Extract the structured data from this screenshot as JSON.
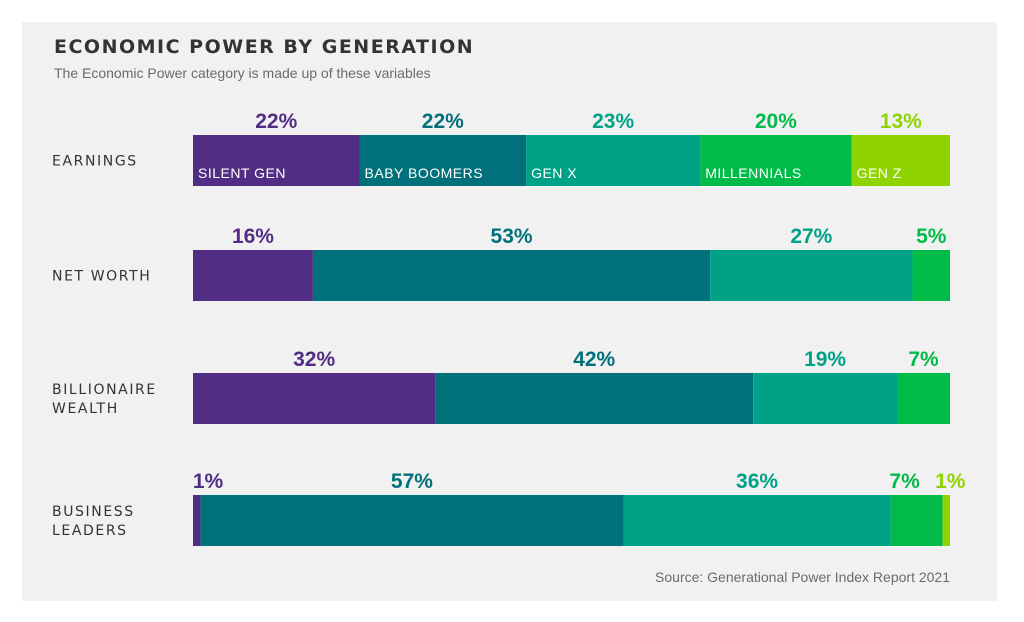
{
  "title": "ECONOMIC POWER BY GENERATION",
  "subtitle": "The Economic Power category is made up of these variables",
  "source": "Source: Generational Power Index Report 2021",
  "colors": {
    "silent_gen": "#522d84",
    "baby_boomers": "#00707a",
    "gen_x": "#00a287",
    "millennials": "#00bb48",
    "gen_z": "#8fd400"
  },
  "chart_data": {
    "type": "bar",
    "orientation": "horizontal",
    "stacked": true,
    "percent_scale": true,
    "series": [
      {
        "name": "SILENT GEN",
        "color": "#522d84",
        "label_color": "#522d84"
      },
      {
        "name": "BABY BOOMERS",
        "color": "#00707a",
        "label_color": "#00707a"
      },
      {
        "name": "GEN X",
        "color": "#00a287",
        "label_color": "#00a287"
      },
      {
        "name": "MILLENNIALS",
        "color": "#00bb48",
        "label_color": "#00bb48"
      },
      {
        "name": "GEN Z",
        "color": "#8fd400",
        "label_color": "#8fd400"
      }
    ],
    "categories": [
      {
        "label_lines": [
          "EARNINGS"
        ],
        "values": [
          22,
          22,
          23,
          20,
          13
        ],
        "labels": [
          "22%",
          "22%",
          "23%",
          "20%",
          "13%"
        ],
        "show_series_names": true
      },
      {
        "label_lines": [
          "NET WORTH"
        ],
        "values": [
          16,
          53,
          27,
          5,
          0
        ],
        "labels": [
          "16%",
          "53%",
          "27%",
          "5%",
          ""
        ],
        "show_series_names": false
      },
      {
        "label_lines": [
          "BILLIONAIRE",
          "WEALTH"
        ],
        "values": [
          32,
          42,
          19,
          7,
          0
        ],
        "labels": [
          "32%",
          "42%",
          "19%",
          "7%",
          ""
        ],
        "show_series_names": false
      },
      {
        "label_lines": [
          "BUSINESS",
          "LEADERS"
        ],
        "values": [
          1,
          57,
          36,
          7,
          1
        ],
        "labels": [
          "1%",
          "57%",
          "36%",
          "7%",
          "1%"
        ],
        "show_series_names": false
      }
    ]
  }
}
